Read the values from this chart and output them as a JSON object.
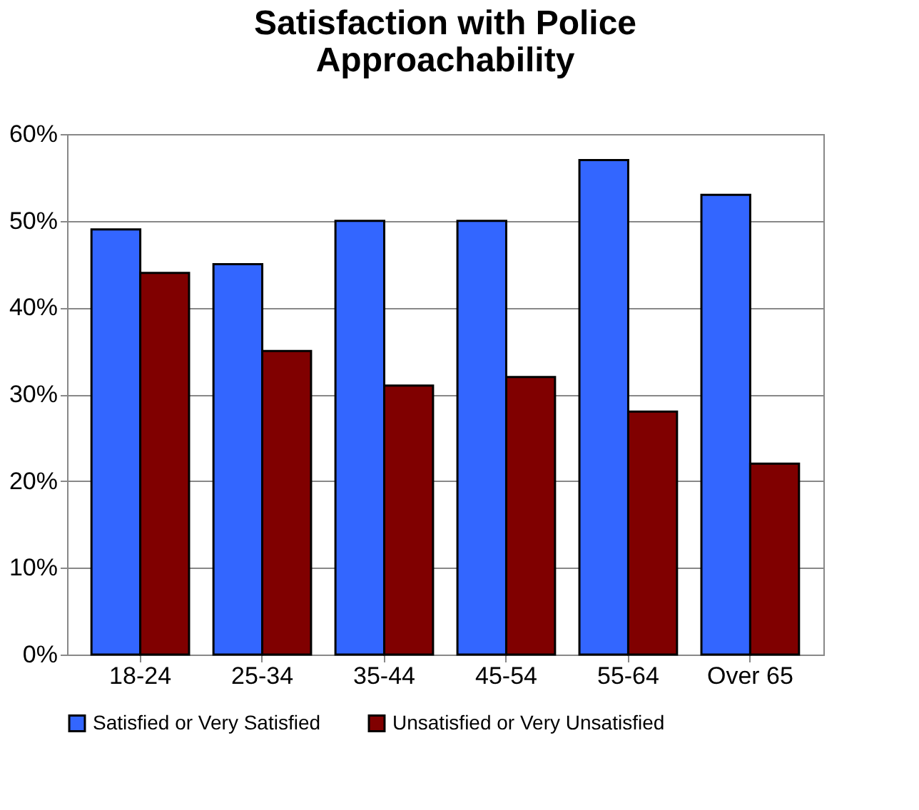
{
  "chart_data": {
    "type": "bar",
    "title": [
      "Satisfaction with Police",
      "Approachability"
    ],
    "categories": [
      "18-24",
      "25-34",
      "35-44",
      "45-54",
      "55-64",
      "Over 65"
    ],
    "series": [
      {
        "name": "Satisfied or Very Satisfied",
        "color": "#3366ff",
        "values": [
          49,
          45,
          50,
          50,
          57,
          53
        ]
      },
      {
        "name": "Unsatisfied or Very Unsatisfied",
        "color": "#800000",
        "values": [
          44,
          35,
          31,
          32,
          28,
          22
        ]
      }
    ],
    "ylim": [
      0,
      60
    ],
    "yticks": [
      {
        "value": 0,
        "label": "0%"
      },
      {
        "value": 10,
        "label": "10%"
      },
      {
        "value": 20,
        "label": "20%"
      },
      {
        "value": 30,
        "label": "30%"
      },
      {
        "value": 40,
        "label": "40%"
      },
      {
        "value": 50,
        "label": "50%"
      },
      {
        "value": 60,
        "label": "60%"
      }
    ],
    "grid": "y",
    "legend": "bottom"
  }
}
